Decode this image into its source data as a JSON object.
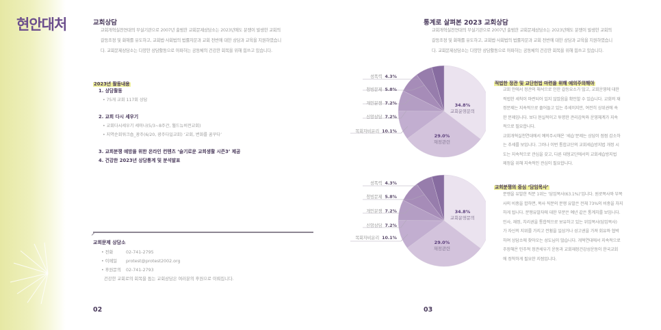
{
  "spread": {
    "title": "현안대처",
    "left_page_number": "02",
    "right_page_number": "03"
  },
  "left_page": {
    "section_title": "교회상담",
    "intro_lines": [
      "교회개혁실천연대의 부설기관으로 2007년 출범한 교회문제상담소는 2023년에도 분쟁이 발생한 교회의",
      "갈등조정 및 화해를 유도하고, 교회법·사회법의 법률자문과 교회 전반에 대한 상담과 교육을 지원하였습니",
      "다. 교회문제상담소는 다양한 상담활동으로 아파하는 공동체의 건강한 회복을 위해 힘쓰고 있습니다."
    ],
    "activities": {
      "title": "2023년 활동내용",
      "items": [
        {
          "label": "1. 상담활동",
          "subs": [
            "• 75개 교회 117회 상담"
          ]
        },
        {
          "label": "2. 교회 다시 세우기",
          "subs": [
            "• 교회다시세우기 세미나(5/3~8주간, 월드뉴비전교회)",
            "• 지역순회워크숍_광주(6/20, 광주다일교회) ‘교회, 변화를 꿈꾸다’"
          ]
        },
        {
          "label": "3. 교회분쟁 예방을 위한 온라인 컨텐츠 ‘슬기로운 교회생활 시즌3’ 제공",
          "subs": []
        },
        {
          "label": "4. 건강한 2023년 상담통계 및 분석발표",
          "subs": []
        }
      ]
    },
    "contact": {
      "title": "교회문제 상담소",
      "rows": [
        {
          "key": "• 전화",
          "value": "02-741-2795"
        },
        {
          "key": "• 이메일",
          "value": "protest@protest2002.org"
        },
        {
          "key": "• 후원문의",
          "value": "02-741-2793"
        }
      ],
      "note": "건강한 교회로의 회복을 돕는 교회상담은 여러분의 후원으로 이뤄집니다."
    }
  },
  "right_page": {
    "section_title": "통계로 살펴본 2023 교회상담",
    "intro_lines": [
      "교회개혁실천연대의 부설기관으로 2007년 출범한 교회문제상담소는 2023년에도 분쟁이 발생한 교회의",
      "갈등조정 및 화해를 유도하고, 교회법·사회법의 법률자문과 교회 전반에 대한 상담과 교육을 지원하였습니",
      "다. 교회문제상담소는 다양한 상담활동으로 아파하는 공동체의 건강한 회복을 위해 힘쓰고 있습니다."
    ],
    "block1": {
      "title": "적법한 정관 및 교단헌법 마련을 위해 예의주의해야",
      "lines": [
        "교회 안에서 정관의 해석으로 인한 갈등요소가 많고, 교회운영에 대한",
        "적법한 세칙이 마련되어 있지 않았음을 확인할 수 있습니다. 교회의 재",
        "정문제는 지속적으로 줄어들고 있는 추세이지만, 여전히 상위권에 속",
        "한 문제입니다. 보다 현실적이고 투명한 관리감독와 운영체계가 지속",
        "적으로 필요합니다.",
        "교회개혁실천연대에서 예의주시해온 ‘세습’문제는 상담이 점점 감소하",
        "는 추세를 보입니다. 그러나 이번 통합교단의 교회세습방지법 개정 시",
        "도는 지속적으로 관심을 갖고, 다른 대형교단에서의 교회세습방지법",
        "제정을 위해 지속적인 관심이 필요합니다."
      ]
    },
    "block2": {
      "title": "교회분쟁의 중심 ‘담임목사’",
      "lines": [
        "분쟁을 유발한 직분 1위는 ‘담임목사(63.1%)’입니다. 원로목사와 부목",
        "사의 비중을 합하면, 목사 직분의 분쟁 유발은 전체 73%의 비중을 차지",
        "하게 됩니다. 분쟁유발자에 대한 부분은 예년 같은 통계치를 보입니다.",
        "인사, 재정, 치리권을 통합적으로 보유하고 있는 위임목사(담임목사)",
        "가 자신의 지위를 가지고 전횡을 일삼거나 성고권을 가져 회유와 협박",
        "하여 상담소에 찾아오는 성도님이 많습니다. 개혁연대에서 지속적으로",
        "주장해온 민주적 정관세우기 운동과 교회재정건강성운동이 한국교회",
        "에 정착하게 필요한 지점입니다."
      ]
    }
  },
  "chart_data": [
    {
      "type": "pie",
      "title": "",
      "slices": [
        {
          "label": "교회운영문의",
          "value": 34.8,
          "color": "#ebe3ef"
        },
        {
          "label": "재정관련",
          "value": 29.0,
          "color": "#d3c3dc"
        },
        {
          "label": "목회자비윤리",
          "value": 10.1,
          "color": "#c2aed0"
        },
        {
          "label": "신앙상담",
          "value": 7.2,
          "color": "#b49ec4"
        },
        {
          "label": "개인분쟁",
          "value": 7.2,
          "color": "#a68cb8"
        },
        {
          "label": "청빙문제",
          "value": 5.8,
          "color": "#977dac"
        },
        {
          "label": "성폭력",
          "value": 4.3,
          "color": "#876ca0"
        }
      ]
    },
    {
      "type": "pie",
      "title": "",
      "slices": [
        {
          "label": "교회운영문의",
          "value": 34.8,
          "color": "#ebe3ef"
        },
        {
          "label": "재정관련",
          "value": 29.0,
          "color": "#d3c3dc"
        },
        {
          "label": "목회자비윤리",
          "value": 10.1,
          "color": "#c2aed0"
        },
        {
          "label": "신앙상담",
          "value": 7.2,
          "color": "#b49ec4"
        },
        {
          "label": "개인분쟁",
          "value": 7.2,
          "color": "#a68cb8"
        },
        {
          "label": "청빙문제",
          "value": 5.8,
          "color": "#977dac"
        },
        {
          "label": "성폭력",
          "value": 4.3,
          "color": "#876ca0"
        }
      ]
    }
  ],
  "pie_labels": {
    "outer": [
      {
        "name": "성폭력",
        "pct": "4.3%"
      },
      {
        "name": "청빙문제",
        "pct": "5.8%"
      },
      {
        "name": "개인분쟁",
        "pct": "7.2%"
      },
      {
        "name": "신앙상담",
        "pct": "7.2%"
      },
      {
        "name": "목회자비윤리",
        "pct": "10.1%"
      }
    ],
    "inner": [
      {
        "name": "교회운영문의",
        "pct": "34.8%"
      },
      {
        "name": "재정관련",
        "pct": "29.0%"
      }
    ]
  },
  "colors": {
    "title_purple": "#6a4d8c",
    "heading_dark": "#4a3a5c",
    "body_gray": "#9a9a9a",
    "highlight_yellow": "#eeef9a"
  }
}
